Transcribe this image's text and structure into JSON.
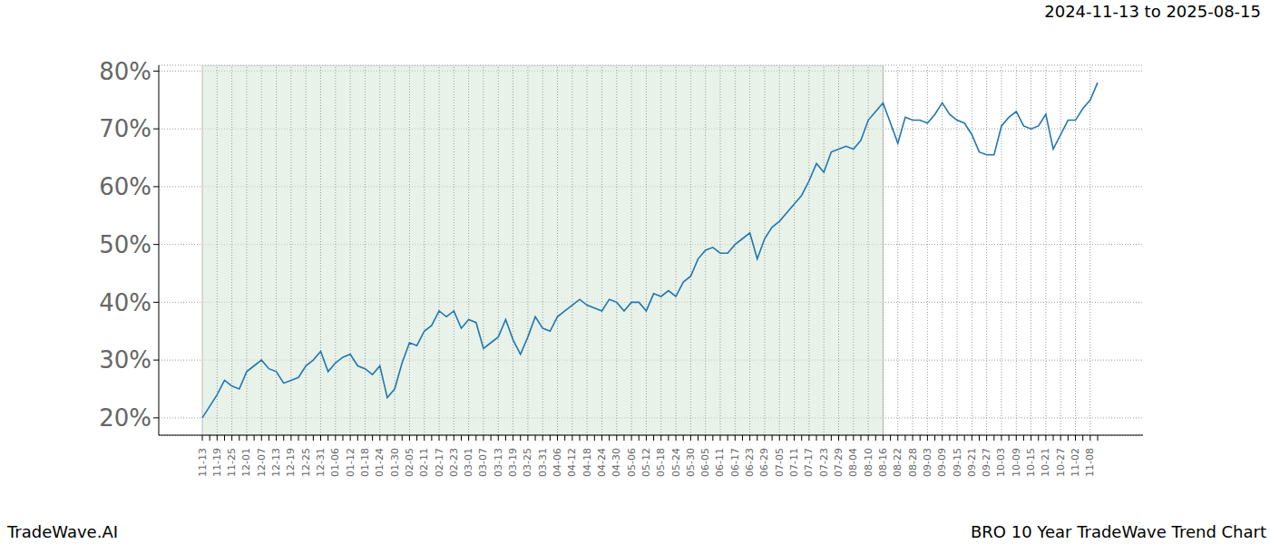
{
  "chart_data": {
    "type": "line",
    "title": "2024-11-13 to 2025-08-15",
    "annotations": [
      "TradeWave.AI",
      "BRO 10 Year TradeWave Trend Chart"
    ],
    "highlight": [
      "11-13",
      "08-16"
    ],
    "grid": true,
    "color": "#1f77b4",
    "categories": [
      "11-13",
      null,
      "11-19",
      null,
      "11-25",
      null,
      "12-01",
      null,
      "12-07",
      null,
      "12-13",
      null,
      "12-19",
      null,
      "12-25",
      null,
      "12-31",
      null,
      "01-06",
      null,
      "01-12",
      null,
      "01-18",
      null,
      "01-24",
      null,
      "01-30",
      null,
      "02-05",
      null,
      "02-11",
      null,
      "02-17",
      null,
      "02-23",
      null,
      "03-01",
      null,
      "03-07",
      null,
      "03-13",
      null,
      "03-19",
      null,
      "03-25",
      null,
      "03-31",
      null,
      "04-06",
      null,
      "04-12",
      null,
      "04-18",
      null,
      "04-24",
      null,
      "04-30",
      null,
      "05-06",
      null,
      "05-12",
      null,
      "05-18",
      null,
      "05-24",
      null,
      "05-30",
      null,
      "06-05",
      null,
      "06-11",
      null,
      "06-17",
      null,
      "06-23",
      null,
      "06-29",
      null,
      "07-05",
      null,
      "07-11",
      null,
      "07-17",
      null,
      "07-23",
      null,
      "07-29",
      null,
      "08-04",
      null,
      "08-10",
      null,
      "08-16",
      null,
      "08-22",
      null,
      "08-28",
      null,
      "09-03",
      null,
      "09-09",
      null,
      "09-15",
      null,
      "09-21",
      null,
      "09-27",
      null,
      "10-03",
      null,
      "10-09",
      null,
      "10-15",
      null,
      "10-21",
      null,
      "10-27",
      null,
      "11-02",
      null,
      "11-08",
      null
    ],
    "values": [
      20,
      22,
      24,
      26.5,
      25.5,
      25,
      28,
      29,
      30,
      28.5,
      28,
      26,
      26.5,
      27,
      29,
      30,
      31.5,
      28,
      29.5,
      30.5,
      31,
      29,
      28.5,
      27.5,
      29,
      23.5,
      25,
      29.5,
      33,
      32.5,
      35,
      36,
      38.5,
      37.5,
      38.5,
      35.5,
      37,
      36.5,
      32,
      33,
      34,
      37,
      33.5,
      31,
      34,
      37.5,
      35.5,
      35,
      37.5,
      38.5,
      39.5,
      40.5,
      39.5,
      39,
      38.5,
      40.5,
      40,
      38.5,
      40,
      40,
      38.5,
      41.5,
      41,
      42,
      41,
      43.5,
      44.5,
      47.5,
      49,
      49.5,
      48.5,
      48.5,
      50,
      51,
      52,
      47.5,
      51,
      53,
      54,
      55.5,
      57,
      58.5,
      61,
      64,
      62.5,
      66,
      66.5,
      67,
      66.5,
      68,
      71.5,
      73,
      74.5,
      71,
      67.5,
      72,
      71.5,
      71.5,
      71,
      72.5,
      74.5,
      72.5,
      71.5,
      71,
      69,
      66,
      65.5,
      65.5,
      70.5,
      72,
      73,
      70.5,
      70,
      70.5,
      72.5,
      66.5,
      69,
      71.5,
      71.5,
      73.5,
      75,
      78
    ],
    "ylim": [
      17,
      81
    ],
    "yticks": [
      {
        "value": 20,
        "label": "20%"
      },
      {
        "value": 30,
        "label": "30%"
      },
      {
        "value": 40,
        "label": "40%"
      },
      {
        "value": 50,
        "label": "50%"
      },
      {
        "value": 60,
        "label": "60%"
      },
      {
        "value": 70,
        "label": "70%"
      },
      {
        "value": 80,
        "label": "80%"
      }
    ]
  }
}
